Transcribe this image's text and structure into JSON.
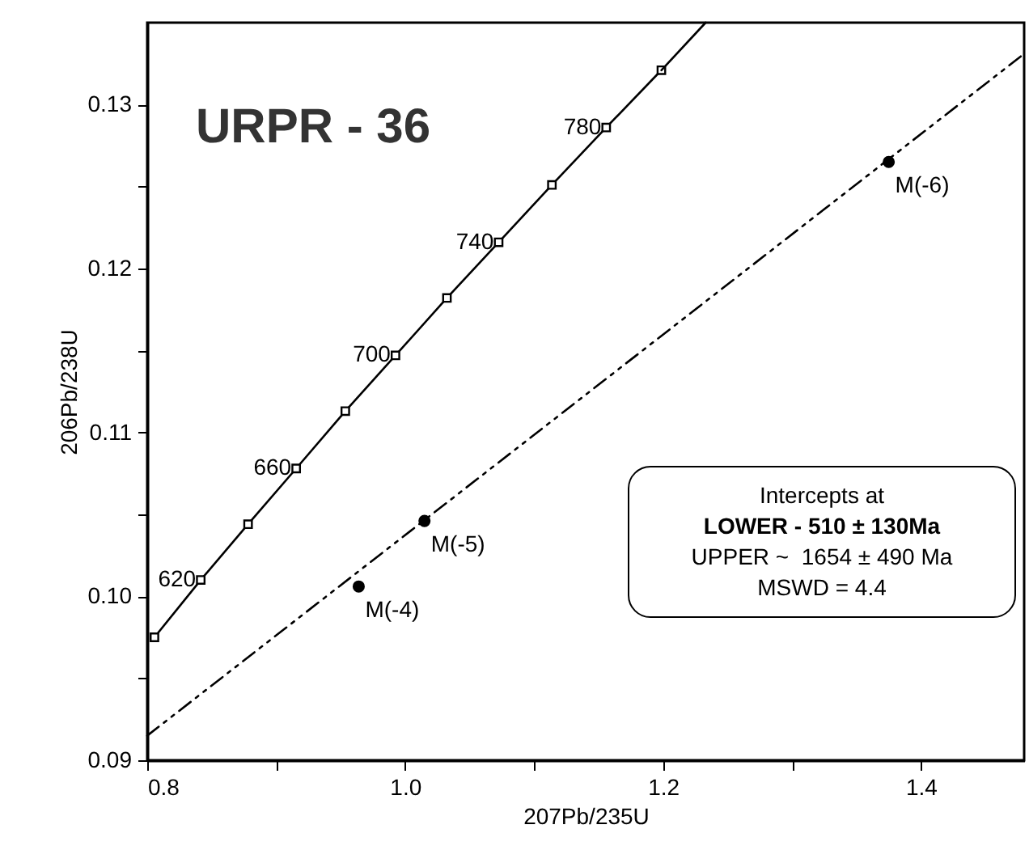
{
  "chart_data": {
    "type": "line",
    "xlabel": "207Pb/235U",
    "ylabel": "206Pb/238U",
    "xlim": [
      0.8,
      1.48
    ],
    "ylim": [
      0.09,
      0.135
    ],
    "xticks": [
      0.8,
      {
        "value": 0.9,
        "label": null
      },
      {
        "value": 1.0,
        "label": "1.0"
      },
      {
        "value": 1.1,
        "label": null
      },
      1.2,
      {
        "value": 1.3,
        "label": null
      },
      1.4
    ],
    "yticks": [
      0.09,
      {
        "value": 0.095,
        "label": null
      },
      {
        "value": 0.1,
        "label": "0.10"
      },
      {
        "value": 0.105,
        "label": null
      },
      0.11,
      {
        "value": 0.115,
        "label": null
      },
      0.12,
      {
        "value": 0.125,
        "label": null
      },
      0.13
    ],
    "grid": false,
    "series": [
      {
        "color": "#000000",
        "marker": "square",
        "line_style": "solid",
        "x": [
          0.8056,
          0.8415,
          0.8782,
          0.9155,
          0.9536,
          0.9925,
          1.0324,
          1.0725,
          1.1138,
          1.1559,
          1.1987
        ],
        "values": [
          0.0975,
          0.101,
          0.1044,
          0.1078,
          0.1113,
          0.1147,
          0.1182,
          0.1216,
          0.1251,
          0.1286,
          0.1321
        ]
      },
      {
        "color": "#000000",
        "marker": "none",
        "line_style": "solid",
        "x": [
          1.1987,
          1.233
        ],
        "values": [
          0.1321,
          0.135
        ]
      },
      {
        "color": "#000000",
        "marker": "none",
        "line_style": "dashed",
        "x": [
          0.8,
          1.48
        ],
        "values": [
          0.0915,
          0.1331
        ]
      },
      {
        "type": "scatter",
        "color": "#000000",
        "marker": "circle",
        "x": [
          0.964,
          1.015,
          1.375
        ],
        "values": [
          0.1006,
          0.1046,
          0.1265
        ]
      }
    ],
    "annotations": [
      "URPR - 36",
      "Intercepts at",
      "LOWER - 510 ± 130Ma",
      "UPPER ~  1654 ± 490 Ma",
      "MSWD = 4.4",
      {
        "text": "620",
        "x": 0.8415,
        "y": 0.101
      },
      {
        "text": "660",
        "x": 0.9155,
        "y": 0.1078
      },
      {
        "text": "700",
        "x": 0.9925,
        "y": 0.1147
      },
      {
        "text": "740",
        "x": 1.0725,
        "y": 0.1216
      },
      {
        "text": "780",
        "x": 1.1559,
        "y": 0.1286
      },
      {
        "text": "M(-4)",
        "x": 0.964,
        "y": 0.1006
      },
      {
        "text": "M(-5)",
        "x": 1.015,
        "y": 0.1046
      },
      {
        "text": "M(-6)",
        "x": 1.375,
        "y": 0.1265
      }
    ]
  }
}
